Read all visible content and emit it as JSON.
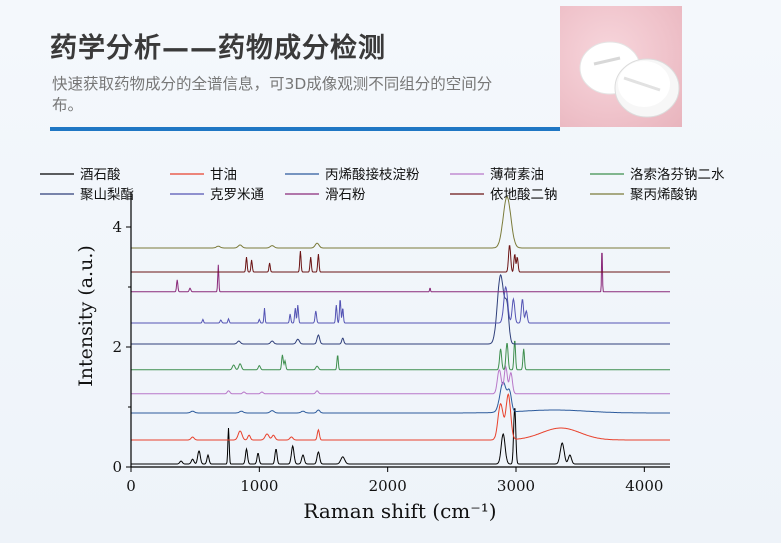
{
  "header": {
    "title": "药学分析——药物成分检测",
    "subtitle": "快速获取药物成分的全谱信息，可3D成像观测不同组分的空间分布。"
  },
  "photo": {
    "subject": "white-tablets-icon",
    "background_color": "#efc2ca"
  },
  "chart_data": {
    "type": "line",
    "title": "",
    "xlabel": "Raman shift (cm⁻¹)",
    "ylabel": "Intensity (a.u.)",
    "xlim": [
      0,
      4200
    ],
    "ylim": [
      0,
      4.45
    ],
    "xticks": [
      0,
      1000,
      2000,
      3000,
      4000
    ],
    "yticks": [
      0,
      2,
      4
    ],
    "grid": false,
    "legend_position": "top",
    "series": [
      {
        "name": "酒石酸",
        "color": "#000000",
        "offset": 0.05,
        "peaks": [
          [
            390,
            0.05,
            10
          ],
          [
            480,
            0.08,
            10
          ],
          [
            530,
            0.22,
            10
          ],
          [
            600,
            0.15,
            8
          ],
          [
            760,
            0.6,
            5
          ],
          [
            900,
            0.25,
            8
          ],
          [
            990,
            0.18,
            8
          ],
          [
            1130,
            0.25,
            8
          ],
          [
            1260,
            0.3,
            10
          ],
          [
            1340,
            0.15,
            10
          ],
          [
            1460,
            0.2,
            10
          ],
          [
            1650,
            0.12,
            15
          ],
          [
            2900,
            0.5,
            15
          ],
          [
            2990,
            0.95,
            8
          ],
          [
            3360,
            0.35,
            15
          ],
          [
            3420,
            0.15,
            12
          ]
        ]
      },
      {
        "name": "甘油",
        "color": "#e8412c",
        "offset": 0.45,
        "peaks": [
          [
            480,
            0.05,
            12
          ],
          [
            850,
            0.15,
            15
          ],
          [
            920,
            0.08,
            10
          ],
          [
            1060,
            0.1,
            15
          ],
          [
            1110,
            0.08,
            12
          ],
          [
            1250,
            0.05,
            12
          ],
          [
            1460,
            0.17,
            8
          ],
          [
            2880,
            0.6,
            20
          ],
          [
            2940,
            0.75,
            18
          ],
          [
            3350,
            0.2,
            150
          ]
        ]
      },
      {
        "name": "丙烯酸接枝淀粉",
        "color": "#2c5a9c",
        "offset": 0.9,
        "peaks": [
          [
            480,
            0.03,
            15
          ],
          [
            860,
            0.03,
            15
          ],
          [
            1100,
            0.04,
            15
          ],
          [
            1340,
            0.03,
            15
          ],
          [
            1460,
            0.05,
            12
          ],
          [
            2900,
            0.5,
            25
          ],
          [
            2950,
            0.3,
            15
          ],
          [
            3300,
            0.05,
            250
          ]
        ]
      },
      {
        "name": "薄荷素油",
        "color": "#b877c9",
        "offset": 1.22,
        "peaks": [
          [
            760,
            0.05,
            10
          ],
          [
            880,
            0.03,
            10
          ],
          [
            1020,
            0.03,
            10
          ],
          [
            1450,
            0.05,
            10
          ],
          [
            2870,
            0.4,
            15
          ],
          [
            2920,
            0.45,
            12
          ],
          [
            2960,
            0.35,
            12
          ]
        ]
      },
      {
        "name": "洛索洛芬钠二水",
        "color": "#3e8f4e",
        "offset": 1.62,
        "peaks": [
          [
            800,
            0.08,
            10
          ],
          [
            850,
            0.1,
            10
          ],
          [
            1000,
            0.07,
            8
          ],
          [
            1180,
            0.25,
            6
          ],
          [
            1200,
            0.15,
            6
          ],
          [
            1450,
            0.06,
            10
          ],
          [
            1610,
            0.25,
            5
          ],
          [
            2880,
            0.35,
            8
          ],
          [
            2930,
            0.45,
            8
          ],
          [
            2990,
            0.5,
            6
          ],
          [
            3060,
            0.35,
            6
          ]
        ]
      },
      {
        "name": "聚山梨酯",
        "color": "#2f3f7a",
        "offset": 2.05,
        "peaks": [
          [
            840,
            0.05,
            12
          ],
          [
            1100,
            0.05,
            12
          ],
          [
            1300,
            0.08,
            12
          ],
          [
            1460,
            0.15,
            10
          ],
          [
            1650,
            0.1,
            8
          ],
          [
            2880,
            1.15,
            25
          ],
          [
            2930,
            0.55,
            15
          ]
        ]
      },
      {
        "name": "克罗米通",
        "color": "#5454b4",
        "offset": 2.4,
        "peaks": [
          [
            560,
            0.06,
            5
          ],
          [
            700,
            0.05,
            6
          ],
          [
            760,
            0.07,
            5
          ],
          [
            1000,
            0.06,
            5
          ],
          [
            1040,
            0.25,
            4
          ],
          [
            1240,
            0.15,
            5
          ],
          [
            1280,
            0.25,
            5
          ],
          [
            1300,
            0.3,
            5
          ],
          [
            1440,
            0.2,
            6
          ],
          [
            1600,
            0.3,
            5
          ],
          [
            1630,
            0.4,
            5
          ],
          [
            1650,
            0.25,
            5
          ],
          [
            2920,
            0.6,
            15
          ],
          [
            2980,
            0.4,
            10
          ],
          [
            3050,
            0.4,
            8
          ],
          [
            3080,
            0.2,
            8
          ]
        ]
      },
      {
        "name": "滑石粉",
        "color": "#8a2a7a",
        "offset": 2.92,
        "peaks": [
          [
            360,
            0.2,
            5
          ],
          [
            460,
            0.06,
            6
          ],
          [
            680,
            0.45,
            4
          ],
          [
            2330,
            0.07,
            3
          ],
          [
            3670,
            0.8,
            3
          ]
        ]
      },
      {
        "name": "依地酸二钠",
        "color": "#6b1414",
        "offset": 3.25,
        "peaks": [
          [
            900,
            0.25,
            5
          ],
          [
            940,
            0.2,
            5
          ],
          [
            1080,
            0.15,
            5
          ],
          [
            1320,
            0.35,
            5
          ],
          [
            1400,
            0.25,
            5
          ],
          [
            1460,
            0.3,
            5
          ],
          [
            2950,
            0.45,
            8
          ],
          [
            2990,
            0.3,
            6
          ],
          [
            3010,
            0.25,
            6
          ]
        ]
      },
      {
        "name": "聚丙烯酸钠",
        "color": "#7b7b3a",
        "offset": 3.65,
        "peaks": [
          [
            680,
            0.03,
            15
          ],
          [
            850,
            0.05,
            15
          ],
          [
            1100,
            0.04,
            15
          ],
          [
            1450,
            0.08,
            15
          ],
          [
            2930,
            0.85,
            30
          ]
        ]
      }
    ]
  }
}
